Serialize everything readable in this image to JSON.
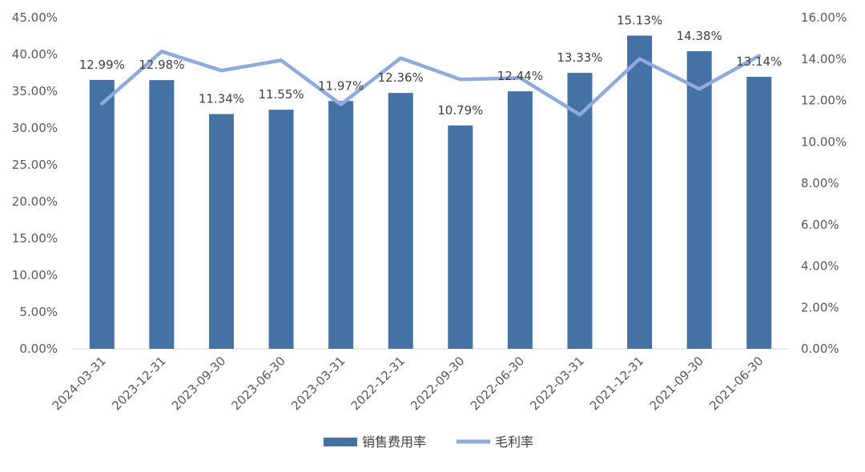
{
  "chart_data": {
    "type": "bar",
    "categories": [
      "2024-03-31",
      "2023-12-31",
      "2023-09-30",
      "2023-06-30",
      "2023-03-31",
      "2022-12-31",
      "2022-09-30",
      "2022-06-30",
      "2022-03-31",
      "2021-12-31",
      "2021-09-30",
      "2021-06-30"
    ],
    "series": [
      {
        "name": "销售费用率",
        "type": "bar",
        "axis": "right",
        "color": "#4472A5",
        "values": [
          12.99,
          12.98,
          11.34,
          11.55,
          11.97,
          12.36,
          10.79,
          12.44,
          13.33,
          15.13,
          14.38,
          13.14
        ],
        "labels": [
          "12.99%",
          "12.98%",
          "11.34%",
          "11.55%",
          "11.97%",
          "12.36%",
          "10.79%",
          "12.44%",
          "13.33%",
          "15.13%",
          "14.38%",
          "13.14%"
        ]
      },
      {
        "name": "毛利率",
        "type": "line",
        "axis": "left",
        "color": "#8FAADC",
        "values": [
          33.3,
          40.4,
          37.8,
          39.2,
          33.2,
          39.5,
          36.6,
          36.8,
          31.8,
          39.4,
          35.3,
          39.8
        ]
      }
    ],
    "y_left": {
      "min": 0,
      "max": 45,
      "step": 5,
      "tick_labels": [
        "0.00%",
        "5.00%",
        "10.00%",
        "15.00%",
        "20.00%",
        "25.00%",
        "30.00%",
        "35.00%",
        "40.00%",
        "45.00%"
      ]
    },
    "y_right": {
      "min": 0,
      "max": 16,
      "step": 2,
      "tick_labels": [
        "0.00%",
        "2.00%",
        "4.00%",
        "6.00%",
        "8.00%",
        "10.00%",
        "12.00%",
        "14.00%",
        "16.00%"
      ]
    },
    "grid": false,
    "legend_position": "bottom",
    "title": ""
  }
}
